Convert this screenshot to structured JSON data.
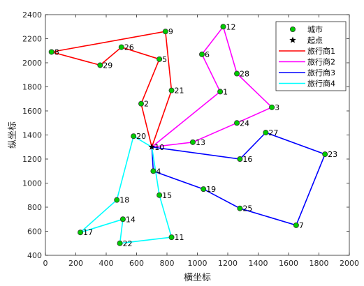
{
  "chart_data": {
    "type": "scatter",
    "xlabel": "横坐标",
    "ylabel": "纵坐标",
    "xlim": [
      0,
      2000
    ],
    "ylim": [
      400,
      2400
    ],
    "xticks": [
      0,
      200,
      400,
      600,
      800,
      1000,
      1200,
      1400,
      1600,
      1800,
      2000
    ],
    "yticks": [
      400,
      600,
      800,
      1000,
      1200,
      1400,
      1600,
      1800,
      2000,
      2200,
      2400
    ],
    "grid": false,
    "legend_position": "top-right",
    "legend": [
      "城市",
      "起点",
      "旅行商1",
      "旅行商2",
      "旅行商3",
      "旅行商4"
    ],
    "city_color": "#00cc00",
    "start": {
      "label": "10",
      "x": 700,
      "y": 1300
    },
    "cities": [
      {
        "label": "1",
        "x": 1150,
        "y": 1760
      },
      {
        "label": "2",
        "x": 630,
        "y": 1660
      },
      {
        "label": "3",
        "x": 1490,
        "y": 1630
      },
      {
        "label": "4",
        "x": 710,
        "y": 1100
      },
      {
        "label": "5",
        "x": 750,
        "y": 2030
      },
      {
        "label": "6",
        "x": 1030,
        "y": 2070
      },
      {
        "label": "7",
        "x": 1650,
        "y": 650
      },
      {
        "label": "8",
        "x": 40,
        "y": 2090
      },
      {
        "label": "9",
        "x": 790,
        "y": 2260
      },
      {
        "label": "10",
        "x": 700,
        "y": 1300
      },
      {
        "label": "11",
        "x": 830,
        "y": 550
      },
      {
        "label": "12",
        "x": 1170,
        "y": 2300
      },
      {
        "label": "13",
        "x": 970,
        "y": 1340
      },
      {
        "label": "14",
        "x": 510,
        "y": 700
      },
      {
        "label": "15",
        "x": 750,
        "y": 900
      },
      {
        "label": "16",
        "x": 1280,
        "y": 1200
      },
      {
        "label": "17",
        "x": 230,
        "y": 590
      },
      {
        "label": "18",
        "x": 470,
        "y": 860
      },
      {
        "label": "19",
        "x": 1040,
        "y": 950
      },
      {
        "label": "20",
        "x": 580,
        "y": 1390
      },
      {
        "label": "21",
        "x": 830,
        "y": 1770
      },
      {
        "label": "22",
        "x": 490,
        "y": 500
      },
      {
        "label": "23",
        "x": 1840,
        "y": 1240
      },
      {
        "label": "24",
        "x": 1260,
        "y": 1500
      },
      {
        "label": "25",
        "x": 1280,
        "y": 790
      },
      {
        "label": "26",
        "x": 500,
        "y": 2130
      },
      {
        "label": "27",
        "x": 1450,
        "y": 1420
      },
      {
        "label": "28",
        "x": 1260,
        "y": 1910
      },
      {
        "label": "29",
        "x": 360,
        "y": 1980
      }
    ],
    "series": [
      {
        "name": "旅行商1",
        "color": "#ff0000",
        "route": [
          "10",
          "2",
          "5",
          "26",
          "29",
          "8",
          "9",
          "21",
          "10"
        ]
      },
      {
        "name": "旅行商2",
        "color": "#ff00ff",
        "route": [
          "10",
          "13",
          "24",
          "3",
          "28",
          "12",
          "6",
          "1",
          "10"
        ]
      },
      {
        "name": "旅行商3",
        "color": "#0000ff",
        "route": [
          "10",
          "16",
          "27",
          "23",
          "7",
          "25",
          "19",
          "4",
          "10"
        ]
      },
      {
        "name": "旅行商4",
        "color": "#00ffff",
        "route": [
          "10",
          "15",
          "11",
          "22",
          "14",
          "17",
          "18",
          "20",
          "10"
        ]
      }
    ]
  }
}
